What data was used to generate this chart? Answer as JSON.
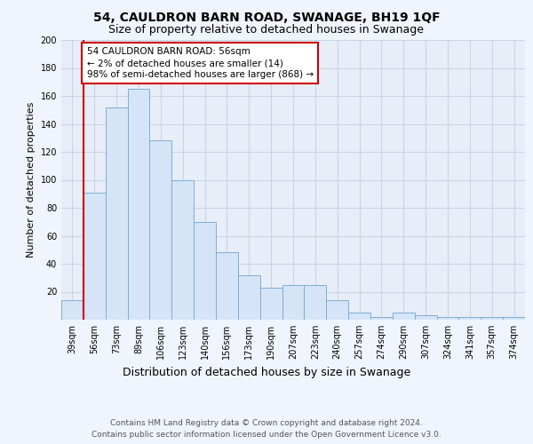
{
  "title": "54, CAULDRON BARN ROAD, SWANAGE, BH19 1QF",
  "subtitle": "Size of property relative to detached houses in Swanage",
  "xlabel": "Distribution of detached houses by size in Swanage",
  "ylabel": "Number of detached properties",
  "categories": [
    "39sqm",
    "56sqm",
    "73sqm",
    "89sqm",
    "106sqm",
    "123sqm",
    "140sqm",
    "156sqm",
    "173sqm",
    "190sqm",
    "207sqm",
    "223sqm",
    "240sqm",
    "257sqm",
    "274sqm",
    "290sqm",
    "307sqm",
    "324sqm",
    "341sqm",
    "357sqm",
    "374sqm"
  ],
  "values": [
    14,
    91,
    152,
    165,
    128,
    100,
    70,
    48,
    32,
    23,
    25,
    25,
    14,
    5,
    2,
    5,
    3,
    2,
    2,
    2,
    2
  ],
  "bar_color": "#d6e4f7",
  "bar_edge_color": "#7bafd4",
  "red_line_index": 1,
  "annotation_text": "54 CAULDRON BARN ROAD: 56sqm\n← 2% of detached houses are smaller (14)\n98% of semi-detached houses are larger (868) →",
  "annotation_box_color": "#ffffff",
  "annotation_box_edge_color": "#cc0000",
  "red_line_color": "#cc0000",
  "ylim": [
    0,
    200
  ],
  "yticks": [
    0,
    20,
    40,
    60,
    80,
    100,
    120,
    140,
    160,
    180,
    200
  ],
  "footer_line1": "Contains HM Land Registry data © Crown copyright and database right 2024.",
  "footer_line2": "Contains public sector information licensed under the Open Government Licence v3.0.",
  "bg_color": "#f0f4fc",
  "plot_bg_color": "#e8eef8",
  "grid_color": "#c8d4e8",
  "title_fontsize": 10,
  "subtitle_fontsize": 9,
  "xlabel_fontsize": 9,
  "ylabel_fontsize": 8,
  "tick_fontsize": 7,
  "annotation_fontsize": 7.5,
  "footer_fontsize": 6.5
}
